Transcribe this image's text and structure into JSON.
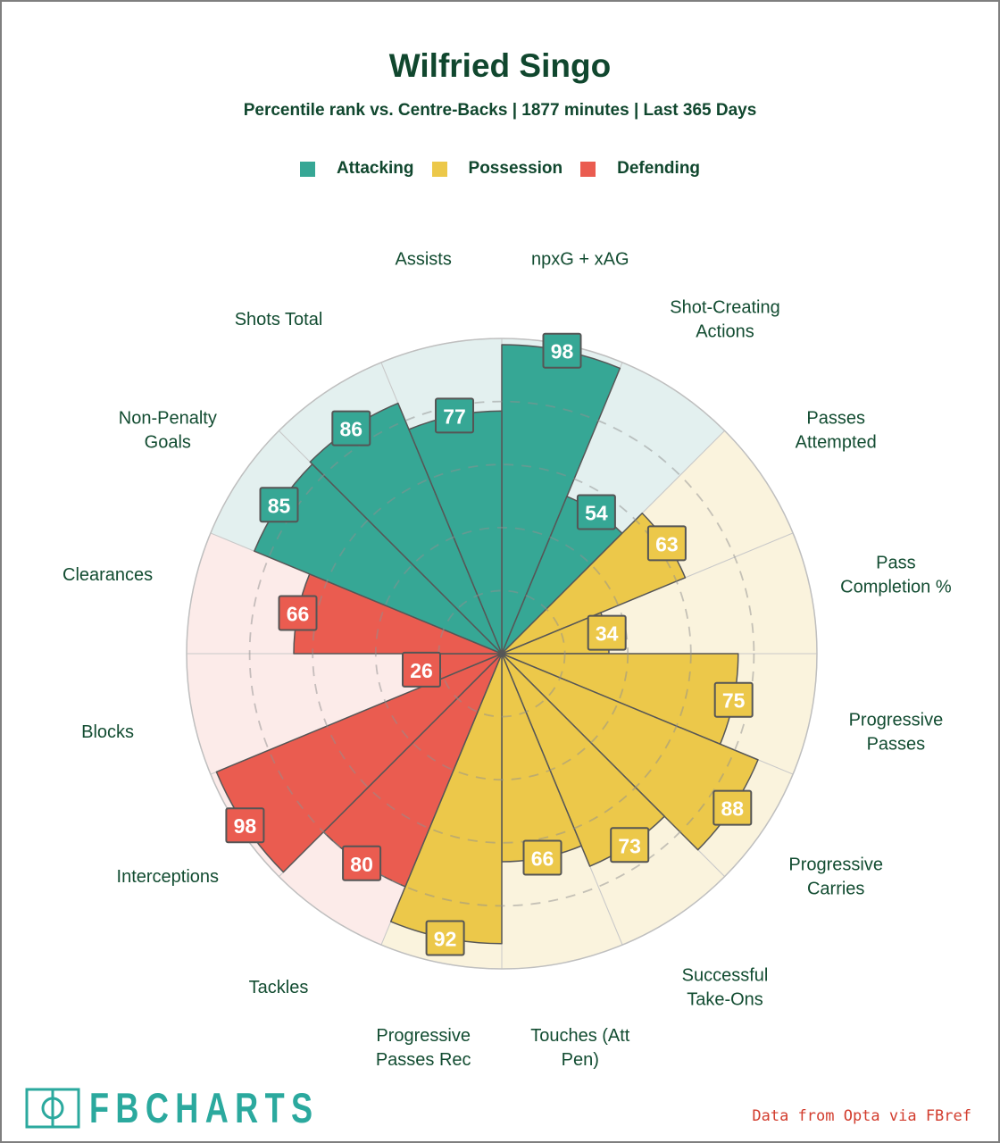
{
  "header": {
    "title": "Wilfried Singo",
    "subtitle": "Percentile rank vs. Centre-Backs | 1877 minutes | Last 365 Days"
  },
  "legend": {
    "items": [
      {
        "label": "Attacking",
        "color": "#36a795"
      },
      {
        "label": "Possession",
        "color": "#ecc84a"
      },
      {
        "label": "Defending",
        "color": "#ea5c50"
      }
    ]
  },
  "chart_data": {
    "type": "pie",
    "subtype": "pizza-percentile",
    "unit": "percentile",
    "max": 100,
    "start_angle_deg": 0,
    "direction": "clockwise",
    "dashed_rings": [
      20,
      40,
      60,
      80
    ],
    "grid": "dashed-circles",
    "groups": {
      "Attacking": {
        "color": "#36a795",
        "bg": "#e3f0ef"
      },
      "Possession": {
        "color": "#ecc84a",
        "bg": "#faf3dd"
      },
      "Defending": {
        "color": "#ea5c50",
        "bg": "#fcebe9"
      }
    },
    "slices": [
      {
        "label": "npxG + xAG",
        "lines": [
          "npxG + xAG"
        ],
        "value": 98,
        "group": "Attacking"
      },
      {
        "label": "Shot-Creating Actions",
        "lines": [
          "Shot-Creating",
          "Actions"
        ],
        "value": 54,
        "group": "Attacking"
      },
      {
        "label": "Passes Attempted",
        "lines": [
          "Passes",
          "Attempted"
        ],
        "value": 63,
        "group": "Possession"
      },
      {
        "label": "Pass Completion %",
        "lines": [
          "Pass",
          "Completion %"
        ],
        "value": 34,
        "group": "Possession"
      },
      {
        "label": "Progressive Passes",
        "lines": [
          "Progressive",
          "Passes"
        ],
        "value": 75,
        "group": "Possession"
      },
      {
        "label": "Progressive Carries",
        "lines": [
          "Progressive",
          "Carries"
        ],
        "value": 88,
        "group": "Possession"
      },
      {
        "label": "Successful Take-Ons",
        "lines": [
          "Successful",
          "Take-Ons"
        ],
        "value": 73,
        "group": "Possession"
      },
      {
        "label": "Touches (Att Pen)",
        "lines": [
          "Touches (Att",
          "Pen)"
        ],
        "value": 66,
        "group": "Possession"
      },
      {
        "label": "Progressive Passes Rec",
        "lines": [
          "Progressive",
          "Passes Rec"
        ],
        "value": 92,
        "group": "Possession"
      },
      {
        "label": "Tackles",
        "lines": [
          "Tackles"
        ],
        "value": 80,
        "group": "Defending"
      },
      {
        "label": "Interceptions",
        "lines": [
          "Interceptions"
        ],
        "value": 98,
        "group": "Defending"
      },
      {
        "label": "Blocks",
        "lines": [
          "Blocks"
        ],
        "value": 26,
        "group": "Defending"
      },
      {
        "label": "Clearances",
        "lines": [
          "Clearances"
        ],
        "value": 66,
        "group": "Defending"
      },
      {
        "label": "Non-Penalty Goals",
        "lines": [
          "Non-Penalty",
          "Goals"
        ],
        "value": 85,
        "group": "Attacking"
      },
      {
        "label": "Shots Total",
        "lines": [
          "Shots Total"
        ],
        "value": 86,
        "group": "Attacking"
      },
      {
        "label": "Assists",
        "lines": [
          "Assists"
        ],
        "value": 77,
        "group": "Attacking"
      }
    ]
  },
  "footer": {
    "brand": "FBCHARTS",
    "credit": "Data from Opta via FBref"
  }
}
